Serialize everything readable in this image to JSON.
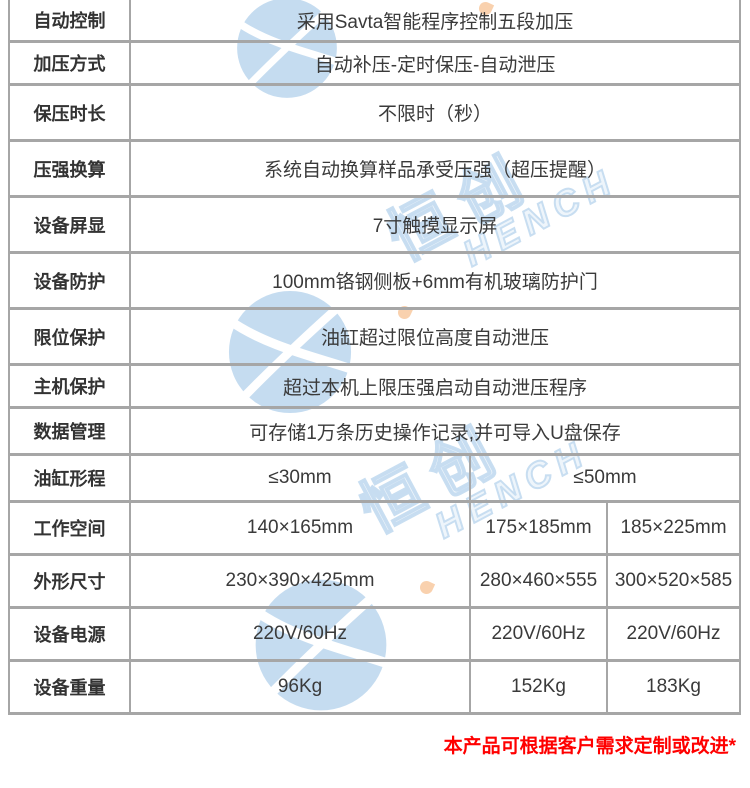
{
  "watermark": {
    "text_cn": "恒创",
    "text_latin": "HENCH",
    "color_blue": "#7fb2de",
    "color_accent": "#f29b4d"
  },
  "table": {
    "border_color": "#a6a6a6",
    "rows": [
      {
        "label": "自动控制",
        "cells": [
          {
            "text": "采用Savta智能程序控制五段加压",
            "colspan": 3
          }
        ]
      },
      {
        "label": "加压方式",
        "cells": [
          {
            "text": "自动补压-定时保压-自动泄压",
            "colspan": 3
          }
        ]
      },
      {
        "label": "保压时长",
        "cells": [
          {
            "text": "不限时（秒）",
            "colspan": 3
          }
        ]
      },
      {
        "label": "压强换算",
        "cells": [
          {
            "text": "系统自动换算样品承受压强（超压提醒）",
            "colspan": 3
          }
        ]
      },
      {
        "label": "设备屏显",
        "cells": [
          {
            "text": "7寸触摸显示屏",
            "colspan": 3
          }
        ]
      },
      {
        "label": "设备防护",
        "cells": [
          {
            "text": "100mm铬钢侧板+6mm有机玻璃防护门",
            "colspan": 3
          }
        ]
      },
      {
        "label": "限位保护",
        "cells": [
          {
            "text": "油缸超过限位高度自动泄压",
            "colspan": 3
          }
        ]
      },
      {
        "label": "主机保护",
        "cells": [
          {
            "text": "超过本机上限压强启动自动泄压程序",
            "colspan": 3
          }
        ]
      },
      {
        "label": "数据管理",
        "cells": [
          {
            "text": "可存储1万条历史操作记录,并可导入U盘保存",
            "colspan": 3
          }
        ]
      },
      {
        "label": "油缸形程",
        "cells": [
          {
            "text": "≤30mm",
            "colspan": 1
          },
          {
            "text": "≤50mm",
            "colspan": 2
          }
        ]
      },
      {
        "label": "工作空间",
        "cells": [
          {
            "text": "140×165mm",
            "colspan": 1
          },
          {
            "text": "175×185mm",
            "colspan": 1
          },
          {
            "text": "185×225mm",
            "colspan": 1
          }
        ]
      },
      {
        "label": "外形尺寸",
        "cells": [
          {
            "text": "230×390×425mm",
            "colspan": 1
          },
          {
            "text": "280×460×555",
            "colspan": 1
          },
          {
            "text": "300×520×585",
            "colspan": 1
          }
        ]
      },
      {
        "label": "设备电源",
        "cells": [
          {
            "text": "220V/60Hz",
            "colspan": 1
          },
          {
            "text": "220V/60Hz",
            "colspan": 1
          },
          {
            "text": "220V/60Hz",
            "colspan": 1
          }
        ]
      },
      {
        "label": "设备重量",
        "cells": [
          {
            "text": "96Kg",
            "colspan": 1
          },
          {
            "text": "152Kg",
            "colspan": 1
          },
          {
            "text": "183Kg",
            "colspan": 1
          }
        ]
      }
    ]
  },
  "footer": {
    "note": "本产品可根据客户需求定制或改进*",
    "color": "#ff0000"
  }
}
